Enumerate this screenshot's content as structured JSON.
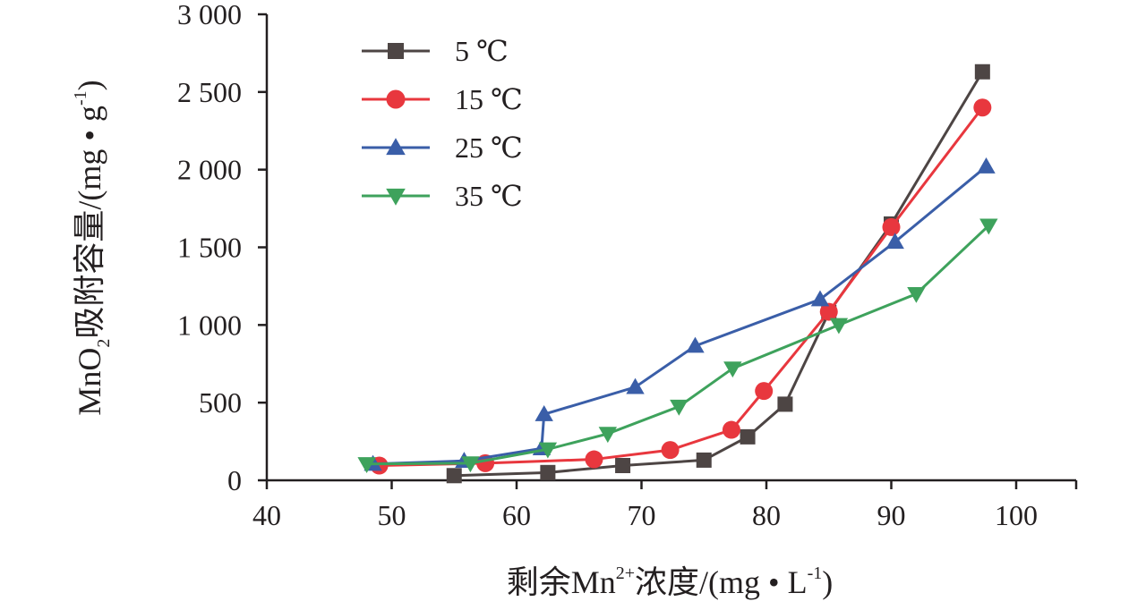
{
  "chart_data": {
    "type": "line",
    "title": "",
    "xlabel": "剩余Mn²⁺浓度/(mg • L⁻¹)",
    "ylabel": "MnO₂吸附容量/(mg • g⁻¹)",
    "xlim": [
      40,
      105
    ],
    "ylim": [
      0,
      3000
    ],
    "xticks": [
      40,
      50,
      60,
      70,
      80,
      90,
      100
    ],
    "xtick_labels": [
      "40",
      "50",
      "60",
      "70",
      "80",
      "90",
      "100"
    ],
    "yticks": [
      0,
      500,
      1000,
      1500,
      2000,
      2500,
      3000
    ],
    "ytick_labels": [
      "0",
      "500",
      "1 000",
      "1 500",
      "2 000",
      "2 500",
      "3 000"
    ],
    "xlabel_parts": {
      "prefix": "剩余Mn",
      "sup": "2+",
      "middle": "浓度/(mg • L",
      "sup2": "-1",
      "suffix": ")"
    },
    "ylabel_parts": {
      "prefix": "MnO",
      "sub": "2",
      "middle": "吸附容量/(mg • g",
      "sup": "-1",
      "suffix": ")"
    },
    "legend_position": "top-left",
    "grid": false,
    "series": [
      {
        "name": "5 ℃",
        "color": "#4d4544",
        "marker": "square",
        "x": [
          55.0,
          62.5,
          68.5,
          75.0,
          78.5,
          81.5,
          85.0,
          90.0,
          97.3
        ],
        "y": [
          30,
          50,
          95,
          130,
          280,
          490,
          1080,
          1650,
          2630
        ]
      },
      {
        "name": "15 ℃",
        "color": "#e8373e",
        "marker": "circle",
        "x": [
          49.0,
          57.5,
          66.2,
          72.3,
          77.2,
          79.8,
          85.0,
          90.0,
          97.3
        ],
        "y": [
          95,
          110,
          135,
          195,
          325,
          575,
          1085,
          1630,
          2400
        ]
      },
      {
        "name": "25 ℃",
        "color": "#3a5ea8",
        "marker": "triangle-up",
        "x": [
          48.5,
          55.8,
          62.0,
          62.2,
          69.5,
          74.3,
          84.3,
          90.3,
          97.6
        ],
        "y": [
          105,
          125,
          205,
          425,
          600,
          865,
          1165,
          1535,
          2020
        ]
      },
      {
        "name": "35 ℃",
        "color": "#3ea25c",
        "marker": "triangle-down",
        "x": [
          48.0,
          56.3,
          62.5,
          67.3,
          73.0,
          77.3,
          85.8,
          92.0,
          97.8
        ],
        "y": [
          105,
          110,
          200,
          300,
          475,
          720,
          1000,
          1200,
          1640
        ]
      }
    ]
  }
}
